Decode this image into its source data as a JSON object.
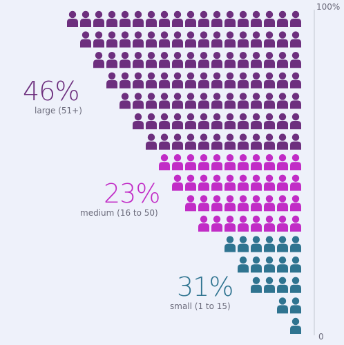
{
  "chart_data": {
    "type": "pictogram",
    "unit_icon": "person-icon",
    "axis": {
      "top_label": "100%",
      "bottom_label": "0"
    },
    "series": [
      {
        "name": "large (51+)",
        "percent_label": "46%",
        "value": 46,
        "color": "#6d2f7e"
      },
      {
        "name": "medium (16 to 50)",
        "percent_label": "23%",
        "value": 23,
        "color": "#c12cc6"
      },
      {
        "name": "small (1 to 15)",
        "percent_label": "31%",
        "value": 31,
        "color": "#2f7490"
      }
    ],
    "rows": [
      {
        "series": 0,
        "count": 18
      },
      {
        "series": 0,
        "count": 17
      },
      {
        "series": 0,
        "count": 16
      },
      {
        "series": 0,
        "count": 15
      },
      {
        "series": 0,
        "count": 14
      },
      {
        "series": 0,
        "count": 13
      },
      {
        "series": 0,
        "count": 12
      },
      {
        "series": 1,
        "count": 11
      },
      {
        "series": 1,
        "count": 10
      },
      {
        "series": 1,
        "count": 9
      },
      {
        "series": 1,
        "count": 8
      },
      {
        "series": 2,
        "count": 6
      },
      {
        "series": 2,
        "count": 5
      },
      {
        "series": 2,
        "count": 4
      },
      {
        "series": 2,
        "count": 2
      },
      {
        "series": 2,
        "count": 1
      }
    ]
  }
}
